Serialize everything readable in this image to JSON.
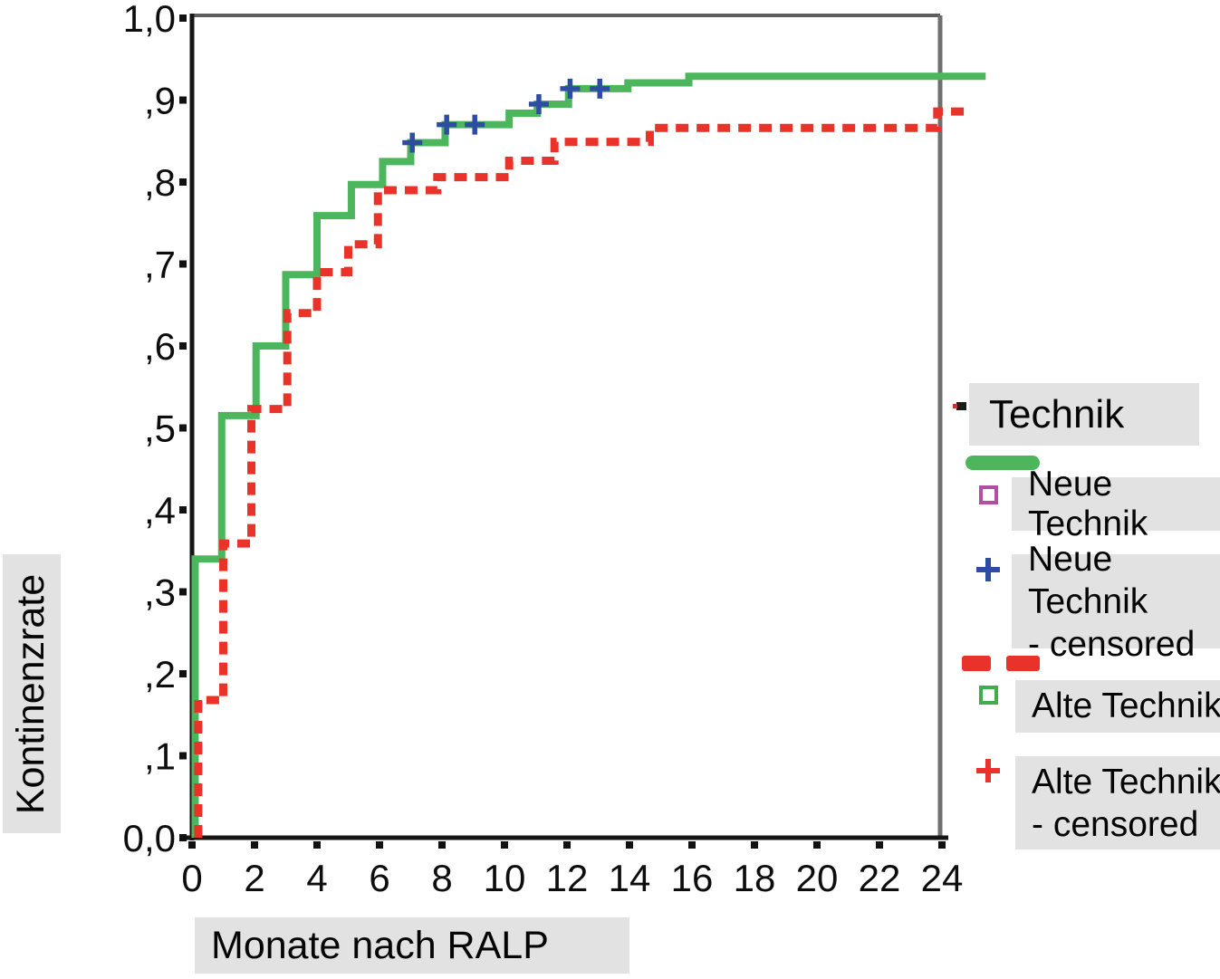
{
  "colors": {
    "label_bg": "#e2e2e2",
    "axis_dark": "#161616",
    "frame_gray": "#6f6f6f"
  },
  "y_axis": {
    "label": "Kontinenzrate",
    "tick_labels": [
      "1,0",
      ",9",
      ",8",
      ",7",
      ",6",
      ",5",
      ",4",
      ",3",
      ",2",
      ",1",
      "0,0"
    ],
    "tick_values": [
      1.0,
      0.9,
      0.8,
      0.7,
      0.6,
      0.5,
      0.4,
      0.3,
      0.2,
      0.1,
      0.0
    ]
  },
  "x_axis": {
    "label": "Monate nach RALP",
    "tick_labels": [
      "0",
      "2",
      "4",
      "6",
      "8",
      "10",
      "12",
      "14",
      "16",
      "18",
      "20",
      "22",
      "24"
    ],
    "tick_values": [
      0,
      2,
      4,
      6,
      8,
      10,
      12,
      14,
      16,
      18,
      20,
      22,
      24
    ]
  },
  "legend": {
    "title": "Technik",
    "entries": [
      {
        "label": "Neue Technik",
        "swatch": "solid-line",
        "swatch_color": "#4cb65c",
        "marker": "purple-square-outline",
        "marker_color": "#b04fa4"
      },
      {
        "lines": [
          "Neue Technik",
          "- censored"
        ],
        "marker": "blue-plus",
        "marker_color": "#2e4ca5"
      },
      {
        "label": "Alte Technik",
        "swatch": "dashed-line",
        "swatch_color": "#e93229",
        "marker": "green-square-outline",
        "marker_color": "#3fae49"
      },
      {
        "lines": [
          "Alte Technik",
          "- censored"
        ],
        "marker": "red-plus",
        "marker_color": "#e93229"
      }
    ]
  },
  "chart_data": {
    "type": "line",
    "subtype": "kaplan-meier-step",
    "title": "",
    "xlabel": "Monate nach RALP",
    "ylabel": "Kontinenzrate",
    "xlim": [
      0,
      25.5
    ],
    "ylim": [
      0.0,
      1.0
    ],
    "x_tick_step": 2,
    "y_tick_step": 0.1,
    "grid": false,
    "legend_position": "right",
    "series": [
      {
        "name": "Neue Technik",
        "color": "#4cb65c",
        "line_style": "solid",
        "end_x": 25.4,
        "steps": [
          [
            0.1,
            0.0
          ],
          [
            0.1,
            0.34
          ],
          [
            0.95,
            0.515
          ],
          [
            2.05,
            0.6
          ],
          [
            3.0,
            0.687
          ],
          [
            4.0,
            0.759
          ],
          [
            5.1,
            0.797
          ],
          [
            6.1,
            0.825
          ],
          [
            7.0,
            0.848
          ],
          [
            8.1,
            0.87
          ],
          [
            10.15,
            0.884
          ],
          [
            11.05,
            0.895
          ],
          [
            12.05,
            0.914
          ],
          [
            13.95,
            0.921
          ],
          [
            15.9,
            0.929
          ]
        ]
      },
      {
        "name": "Alte Technik",
        "color": "#e93229",
        "line_style": "dashed",
        "end_x": 24.8,
        "steps": [
          [
            0.2,
            0.0
          ],
          [
            0.2,
            0.168
          ],
          [
            1.0,
            0.359
          ],
          [
            1.9,
            0.523
          ],
          [
            3.05,
            0.64
          ],
          [
            4.0,
            0.69
          ],
          [
            5.0,
            0.724
          ],
          [
            5.95,
            0.79
          ],
          [
            7.85,
            0.806
          ],
          [
            10.15,
            0.826
          ],
          [
            11.6,
            0.849
          ],
          [
            14.65,
            0.866
          ],
          [
            23.85,
            0.886
          ]
        ]
      }
    ],
    "censored_marks": [
      {
        "series": "Neue Technik",
        "symbol": "plus",
        "color": "#2e4ca5",
        "points": [
          [
            7.05,
            0.848
          ],
          [
            8.15,
            0.87
          ],
          [
            9.05,
            0.87
          ],
          [
            11.1,
            0.895
          ],
          [
            12.1,
            0.914
          ],
          [
            13.05,
            0.914
          ]
        ]
      },
      {
        "series": "Alte Technik",
        "symbol": "plus",
        "color": "#e93229",
        "points": []
      }
    ]
  }
}
